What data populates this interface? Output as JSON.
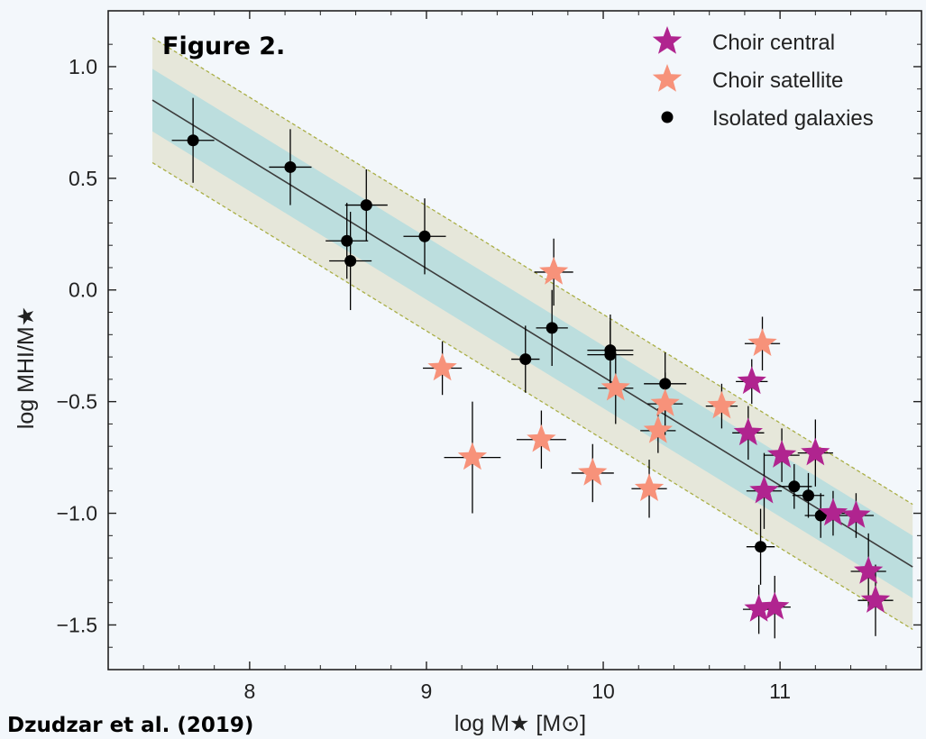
{
  "figure_label": "Figure 2.",
  "credit": "Dzudzar et al. (2019)",
  "colors": {
    "background": "#f3f7fb",
    "central": "#b0248f",
    "satellite": "#f7927a",
    "isolated": "#000000",
    "band_outer": "#e6e7da",
    "band_inner": "#bcdede",
    "band_edge": "#a9ae45",
    "fit_line": "#3c3c3c"
  },
  "chart_data": {
    "type": "scatter",
    "xlabel": "log M★ [M⊙]",
    "ylabel": "log MHI/M★",
    "xlim": [
      7.2,
      11.8
    ],
    "ylim": [
      -1.7,
      1.25
    ],
    "x_ticks": [
      8,
      9,
      10,
      11
    ],
    "y_ticks": [
      1.0,
      0.5,
      0.0,
      -0.5,
      -1.0,
      -1.5
    ],
    "x_tick_labels": [
      "8",
      "9",
      "10",
      "11"
    ],
    "y_tick_labels": [
      "1.0",
      "0.5",
      "0.0",
      "−0.5",
      "−1.0",
      "−1.5"
    ],
    "fit": {
      "x_range": [
        7.45,
        11.75
      ],
      "y_start": 0.85,
      "y_end": -1.24
    },
    "band_inner_halfwidth": 0.14,
    "band_outer_halfwidth": 0.28,
    "legend_position": "top-right",
    "grid": false,
    "series": [
      {
        "name": "Choir central",
        "marker": "star",
        "color": "#b0248f",
        "points": [
          {
            "x": 10.84,
            "y": -0.41,
            "xerr": 0.09,
            "yerr": 0.1
          },
          {
            "x": 10.82,
            "y": -0.64,
            "xerr": 0.09,
            "yerr": 0.12
          },
          {
            "x": 11.01,
            "y": -0.74,
            "xerr": 0.1,
            "yerr": 0.12
          },
          {
            "x": 11.2,
            "y": -0.73,
            "xerr": 0.1,
            "yerr": 0.15
          },
          {
            "x": 10.91,
            "y": -0.9,
            "xerr": 0.1,
            "yerr": 0.17
          },
          {
            "x": 11.3,
            "y": -1.0,
            "xerr": 0.1,
            "yerr": 0.1
          },
          {
            "x": 11.43,
            "y": -1.01,
            "xerr": 0.1,
            "yerr": 0.1
          },
          {
            "x": 11.5,
            "y": -1.26,
            "xerr": 0.1,
            "yerr": 0.17
          },
          {
            "x": 11.54,
            "y": -1.39,
            "xerr": 0.1,
            "yerr": 0.16
          },
          {
            "x": 10.88,
            "y": -1.43,
            "xerr": 0.09,
            "yerr": 0.11
          },
          {
            "x": 10.97,
            "y": -1.42,
            "xerr": 0.09,
            "yerr": 0.14
          }
        ]
      },
      {
        "name": "Choir satellite",
        "marker": "star",
        "color": "#f7927a",
        "points": [
          {
            "x": 9.72,
            "y": 0.08,
            "xerr": 0.11,
            "yerr": 0.15
          },
          {
            "x": 10.9,
            "y": -0.24,
            "xerr": 0.1,
            "yerr": 0.12
          },
          {
            "x": 9.09,
            "y": -0.35,
            "xerr": 0.11,
            "yerr": 0.12
          },
          {
            "x": 10.07,
            "y": -0.44,
            "xerr": 0.1,
            "yerr": 0.16
          },
          {
            "x": 10.35,
            "y": -0.51,
            "xerr": 0.1,
            "yerr": 0.14
          },
          {
            "x": 10.67,
            "y": -0.52,
            "xerr": 0.09,
            "yerr": 0.1
          },
          {
            "x": 10.31,
            "y": -0.63,
            "xerr": 0.1,
            "yerr": 0.1
          },
          {
            "x": 9.65,
            "y": -0.67,
            "xerr": 0.14,
            "yerr": 0.13
          },
          {
            "x": 9.26,
            "y": -0.75,
            "xerr": 0.16,
            "yerr": 0.25
          },
          {
            "x": 9.94,
            "y": -0.82,
            "xerr": 0.12,
            "yerr": 0.13
          },
          {
            "x": 10.26,
            "y": -0.89,
            "xerr": 0.1,
            "yerr": 0.13
          }
        ]
      },
      {
        "name": "Isolated galaxies",
        "marker": "circle",
        "color": "#000000",
        "points": [
          {
            "x": 7.68,
            "y": 0.67,
            "xerr": 0.12,
            "yerr": 0.19
          },
          {
            "x": 8.23,
            "y": 0.55,
            "xerr": 0.12,
            "yerr": 0.17
          },
          {
            "x": 8.55,
            "y": 0.22,
            "xerr": 0.12,
            "yerr": 0.17
          },
          {
            "x": 8.57,
            "y": 0.13,
            "xerr": 0.12,
            "yerr": 0.22
          },
          {
            "x": 8.66,
            "y": 0.38,
            "xerr": 0.12,
            "yerr": 0.16
          },
          {
            "x": 8.99,
            "y": 0.24,
            "xerr": 0.12,
            "yerr": 0.17
          },
          {
            "x": 9.56,
            "y": -0.31,
            "xerr": 0.08,
            "yerr": 0.15
          },
          {
            "x": 9.71,
            "y": -0.17,
            "xerr": 0.09,
            "yerr": 0.17
          },
          {
            "x": 10.04,
            "y": -0.27,
            "xerr": 0.13,
            "yerr": 0.16
          },
          {
            "x": 10.04,
            "y": -0.29,
            "xerr": 0.13,
            "yerr": 0.15
          },
          {
            "x": 10.35,
            "y": -0.42,
            "xerr": 0.12,
            "yerr": 0.14
          },
          {
            "x": 11.08,
            "y": -0.88,
            "xerr": 0.1,
            "yerr": 0.1
          },
          {
            "x": 11.16,
            "y": -0.92,
            "xerr": 0.09,
            "yerr": 0.1
          },
          {
            "x": 11.23,
            "y": -1.01,
            "xerr": 0.09,
            "yerr": 0.1
          },
          {
            "x": 10.89,
            "y": -1.15,
            "xerr": 0.08,
            "yerr": 0.17
          }
        ]
      }
    ]
  }
}
